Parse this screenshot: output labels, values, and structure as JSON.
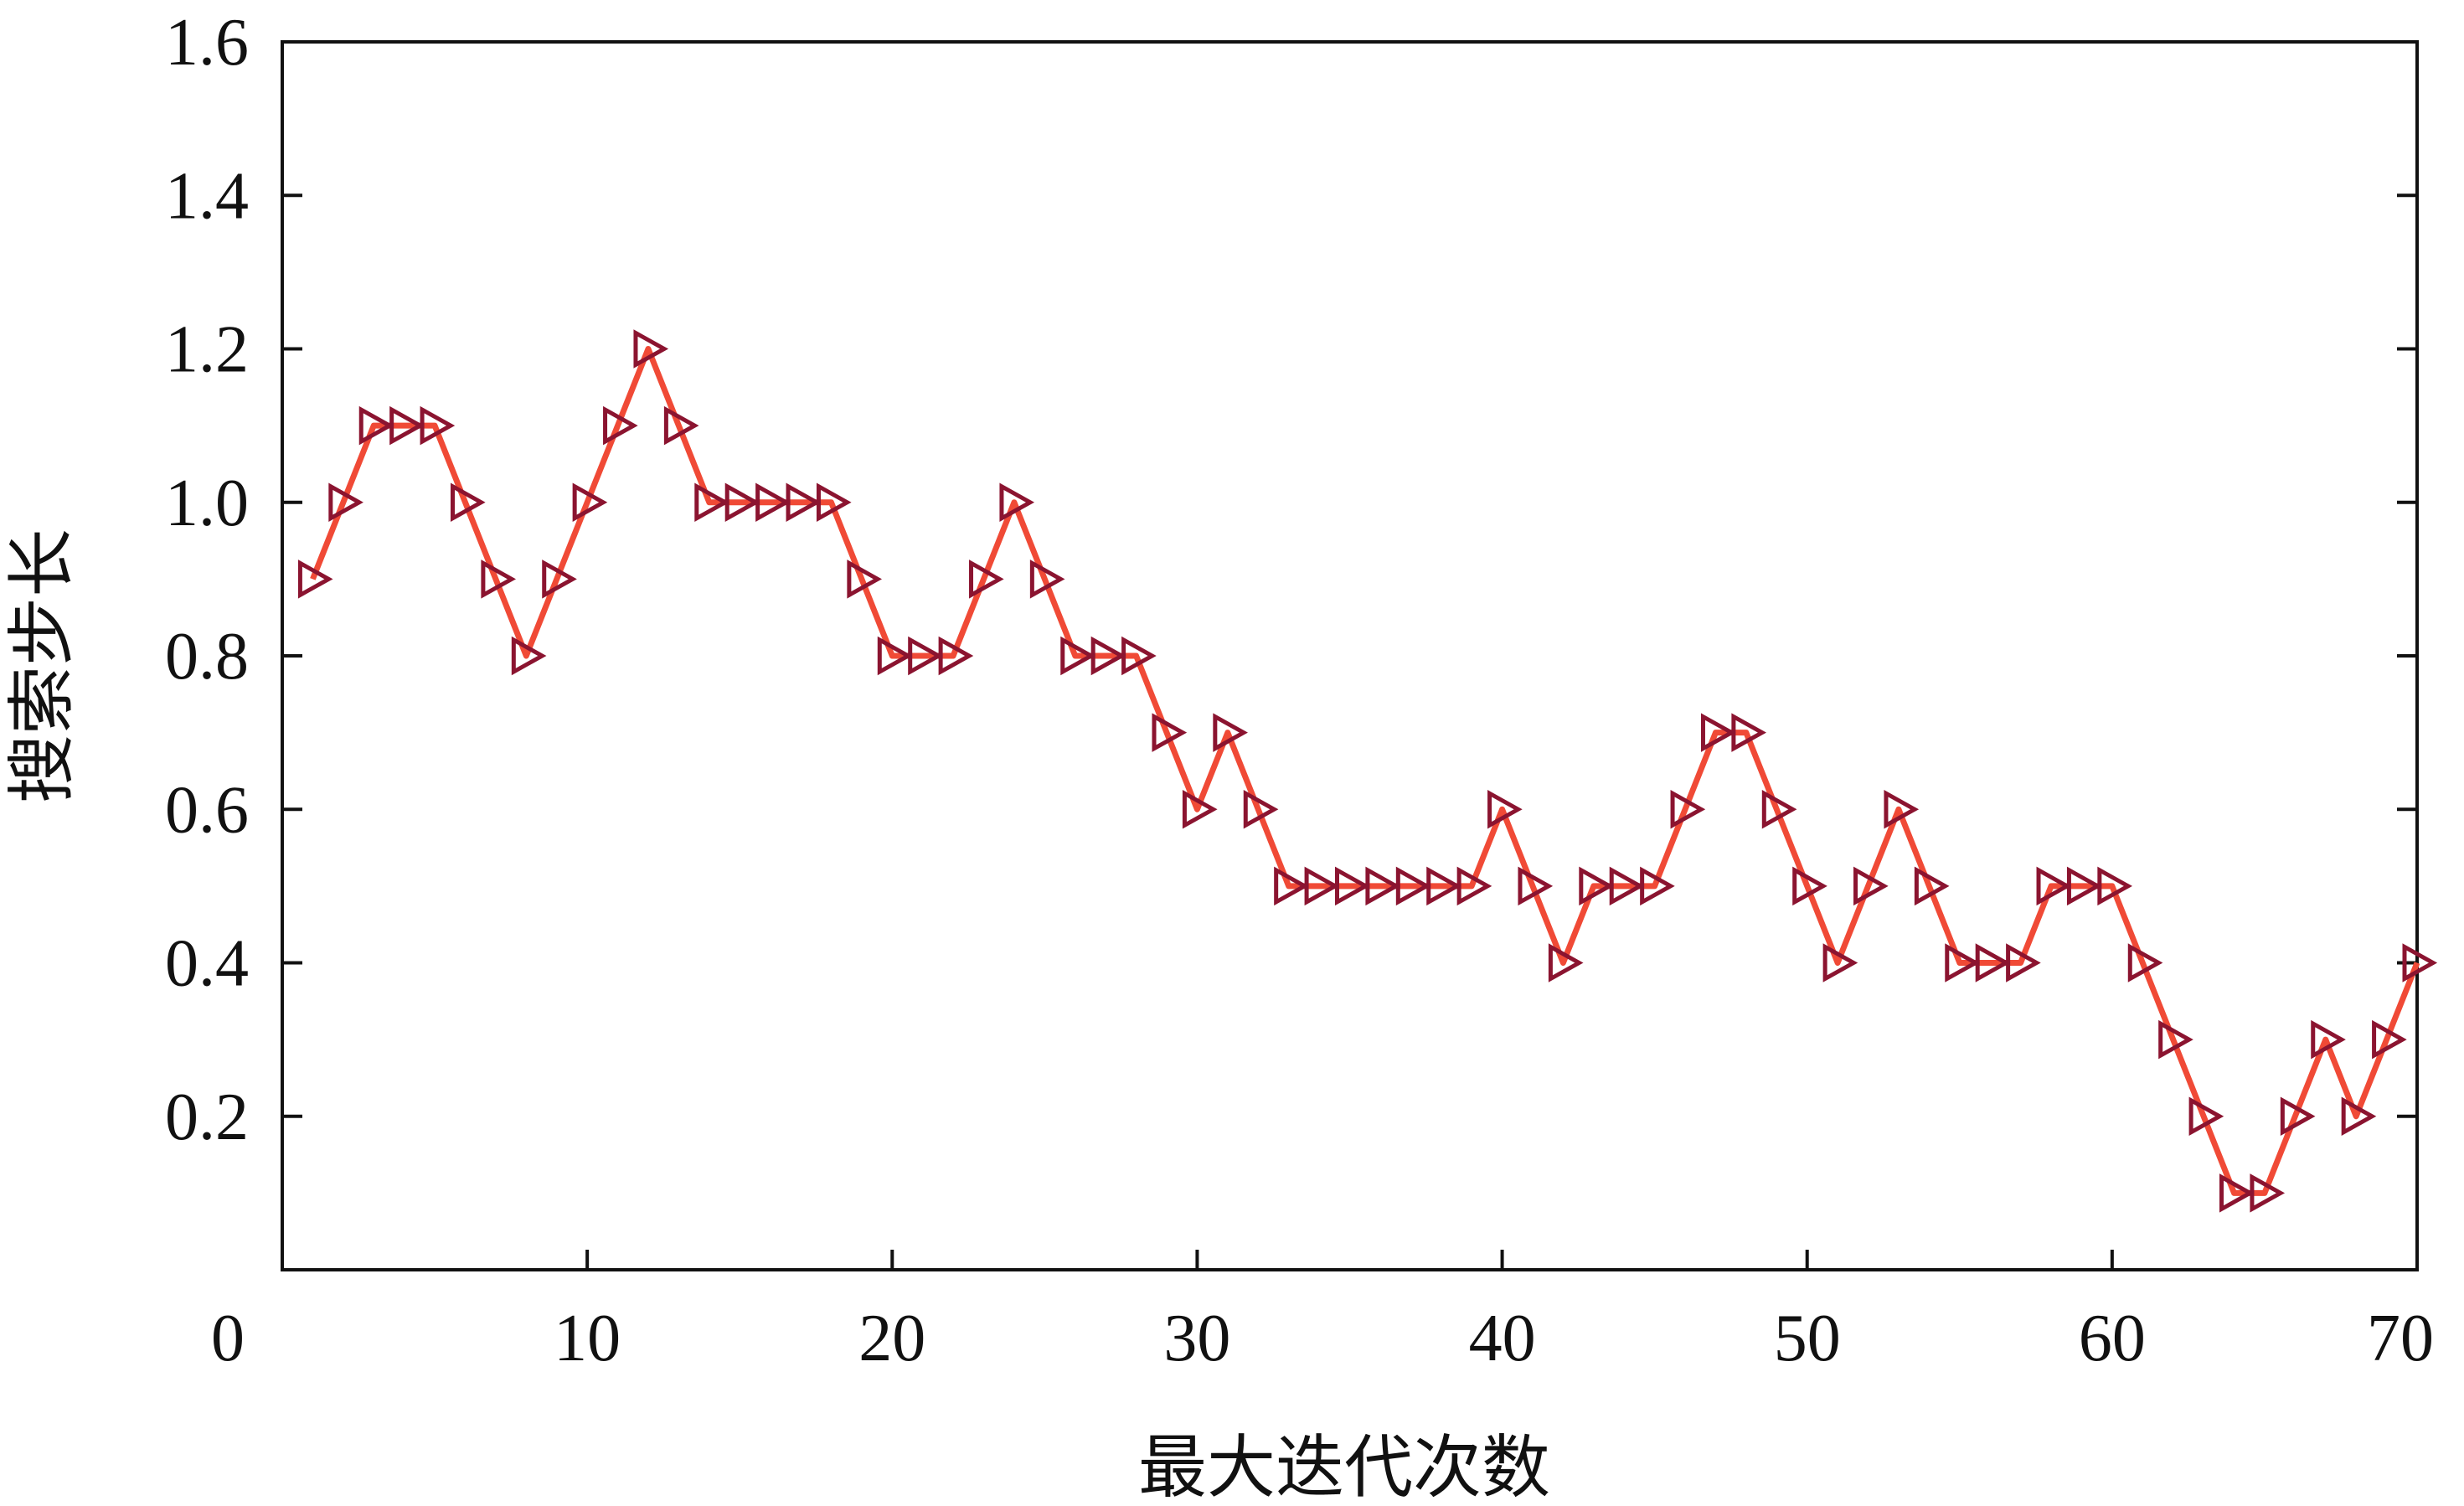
{
  "chart_data": {
    "type": "line",
    "title": "",
    "xlabel": "最大迭代次数",
    "ylabel": "搜索步长",
    "xlim": [
      0,
      70
    ],
    "ylim": [
      0,
      1.6
    ],
    "xticks": [
      0,
      10,
      20,
      30,
      40,
      50,
      60,
      70
    ],
    "xtick_labels": [
      "0",
      "10",
      "20",
      "30",
      "40",
      "50",
      "60",
      "70"
    ],
    "yticks": [
      0.2,
      0.4,
      0.6,
      0.8,
      1.0,
      1.2,
      1.4,
      1.6
    ],
    "ytick_labels": [
      "0.2",
      "0.4",
      "0.6",
      "0.8",
      "1.0",
      "1.2",
      "1.4",
      "1.6"
    ],
    "grid": false,
    "line_color": "#f04a36",
    "marker_color": "#8b1430",
    "marker": "triangle-right",
    "series": [
      {
        "x": [
          1,
          2,
          3,
          4,
          5,
          6,
          7,
          8,
          9,
          10,
          11,
          12,
          13,
          14,
          15,
          16,
          17,
          18,
          19,
          20,
          21,
          22,
          23,
          24,
          25,
          26,
          27,
          28,
          29,
          30,
          31,
          32,
          33,
          34,
          35,
          36,
          37,
          38,
          39,
          40,
          41,
          42,
          43,
          44,
          45,
          46,
          47,
          48,
          49,
          50,
          51,
          52,
          53,
          54,
          55,
          56,
          57,
          58,
          59,
          60,
          61,
          62,
          63,
          64,
          65,
          66,
          67,
          68,
          69,
          70
        ],
        "values": [
          0.9,
          1.0,
          1.1,
          1.1,
          1.1,
          1.0,
          0.9,
          0.8,
          0.9,
          1.0,
          1.1,
          1.2,
          1.1,
          1.0,
          1.0,
          1.0,
          1.0,
          1.0,
          0.9,
          0.8,
          0.8,
          0.8,
          0.9,
          1.0,
          0.9,
          0.8,
          0.8,
          0.8,
          0.7,
          0.6,
          0.7,
          0.6,
          0.5,
          0.5,
          0.5,
          0.5,
          0.5,
          0.5,
          0.5,
          0.6,
          0.5,
          0.4,
          0.5,
          0.5,
          0.5,
          0.6,
          0.7,
          0.7,
          0.6,
          0.5,
          0.4,
          0.5,
          0.6,
          0.5,
          0.4,
          0.4,
          0.4,
          0.5,
          0.5,
          0.5,
          0.4,
          0.3,
          0.2,
          0.1,
          0.1,
          0.2,
          0.3,
          0.2,
          0.3,
          0.4
        ]
      }
    ]
  }
}
